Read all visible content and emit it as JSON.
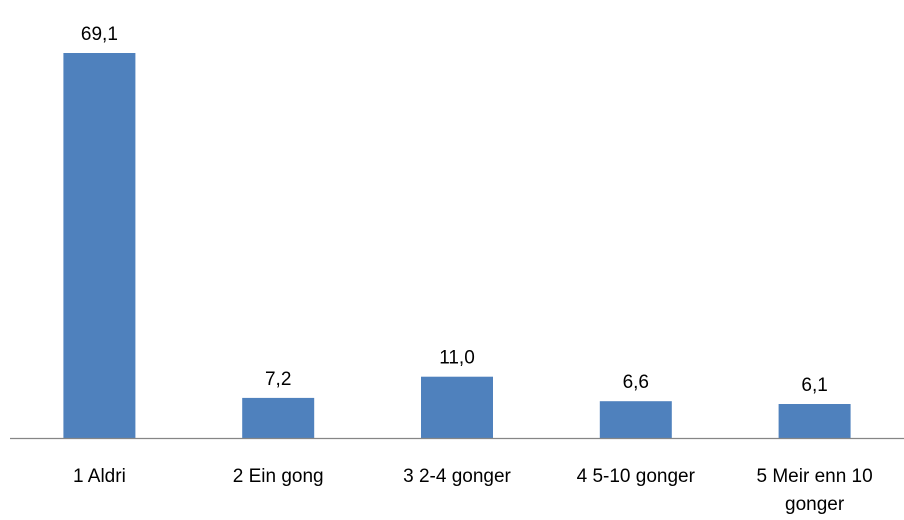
{
  "chart_data": {
    "type": "bar",
    "categories": [
      "1 Aldri",
      "2 Ein gong",
      "3 2-4 gonger",
      "4 5-10 gonger",
      "5 Meir enn 10 gonger"
    ],
    "category_lines": [
      [
        "1 Aldri"
      ],
      [
        "2 Ein gong"
      ],
      [
        "3 2-4 gonger"
      ],
      [
        "4 5-10 gonger"
      ],
      [
        "5 Meir enn 10",
        "gonger"
      ]
    ],
    "values": [
      69.1,
      7.2,
      11.0,
      6.6,
      6.1
    ],
    "data_labels": [
      "69,1",
      "7,2",
      "11,0",
      "6,6",
      "6,1"
    ],
    "title": "",
    "xlabel": "",
    "ylabel": "",
    "ylim": [
      0,
      70
    ],
    "grid": false,
    "legend": "none",
    "colors": {
      "bar": "#4f81bd",
      "axis": "#868686"
    }
  }
}
